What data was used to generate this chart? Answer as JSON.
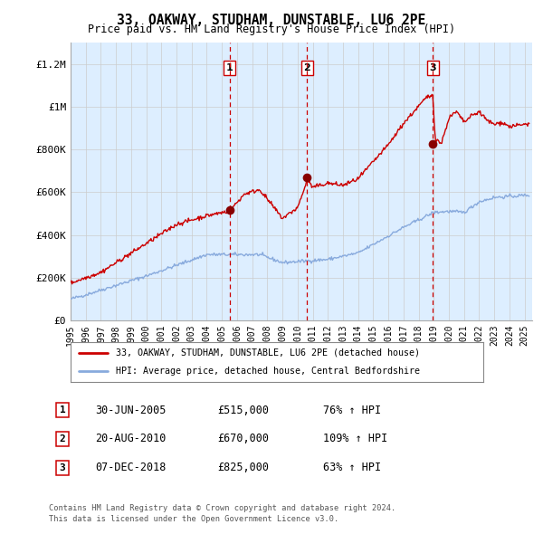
{
  "title": "33, OAKWAY, STUDHAM, DUNSTABLE, LU6 2PE",
  "subtitle": "Price paid vs. HM Land Registry's House Price Index (HPI)",
  "ylabel_ticks": [
    "£0",
    "£200K",
    "£400K",
    "£600K",
    "£800K",
    "£1M",
    "£1.2M"
  ],
  "ytick_values": [
    0,
    200000,
    400000,
    600000,
    800000,
    1000000,
    1200000
  ],
  "ylim": [
    0,
    1300000
  ],
  "xlim_start": 1995.0,
  "xlim_end": 2025.5,
  "sale_dates": [
    2005.496,
    2010.635,
    2018.927
  ],
  "sale_prices": [
    515000,
    670000,
    825000
  ],
  "sale_labels": [
    "1",
    "2",
    "3"
  ],
  "red_line_color": "#cc0000",
  "blue_line_color": "#88aadd",
  "sale_marker_color": "#880000",
  "dashed_line_color": "#cc0000",
  "grid_color": "#cccccc",
  "bg_color": "#ddeeff",
  "legend_label_red": "33, OAKWAY, STUDHAM, DUNSTABLE, LU6 2PE (detached house)",
  "legend_label_blue": "HPI: Average price, detached house, Central Bedfordshire",
  "transaction_rows": [
    {
      "num": "1",
      "date": "30-JUN-2005",
      "price": "£515,000",
      "pct": "76% ↑ HPI"
    },
    {
      "num": "2",
      "date": "20-AUG-2010",
      "price": "£670,000",
      "pct": "109% ↑ HPI"
    },
    {
      "num": "3",
      "date": "07-DEC-2018",
      "price": "£825,000",
      "pct": "63% ↑ HPI"
    }
  ],
  "footnote1": "Contains HM Land Registry data © Crown copyright and database right 2024.",
  "footnote2": "This data is licensed under the Open Government Licence v3.0."
}
